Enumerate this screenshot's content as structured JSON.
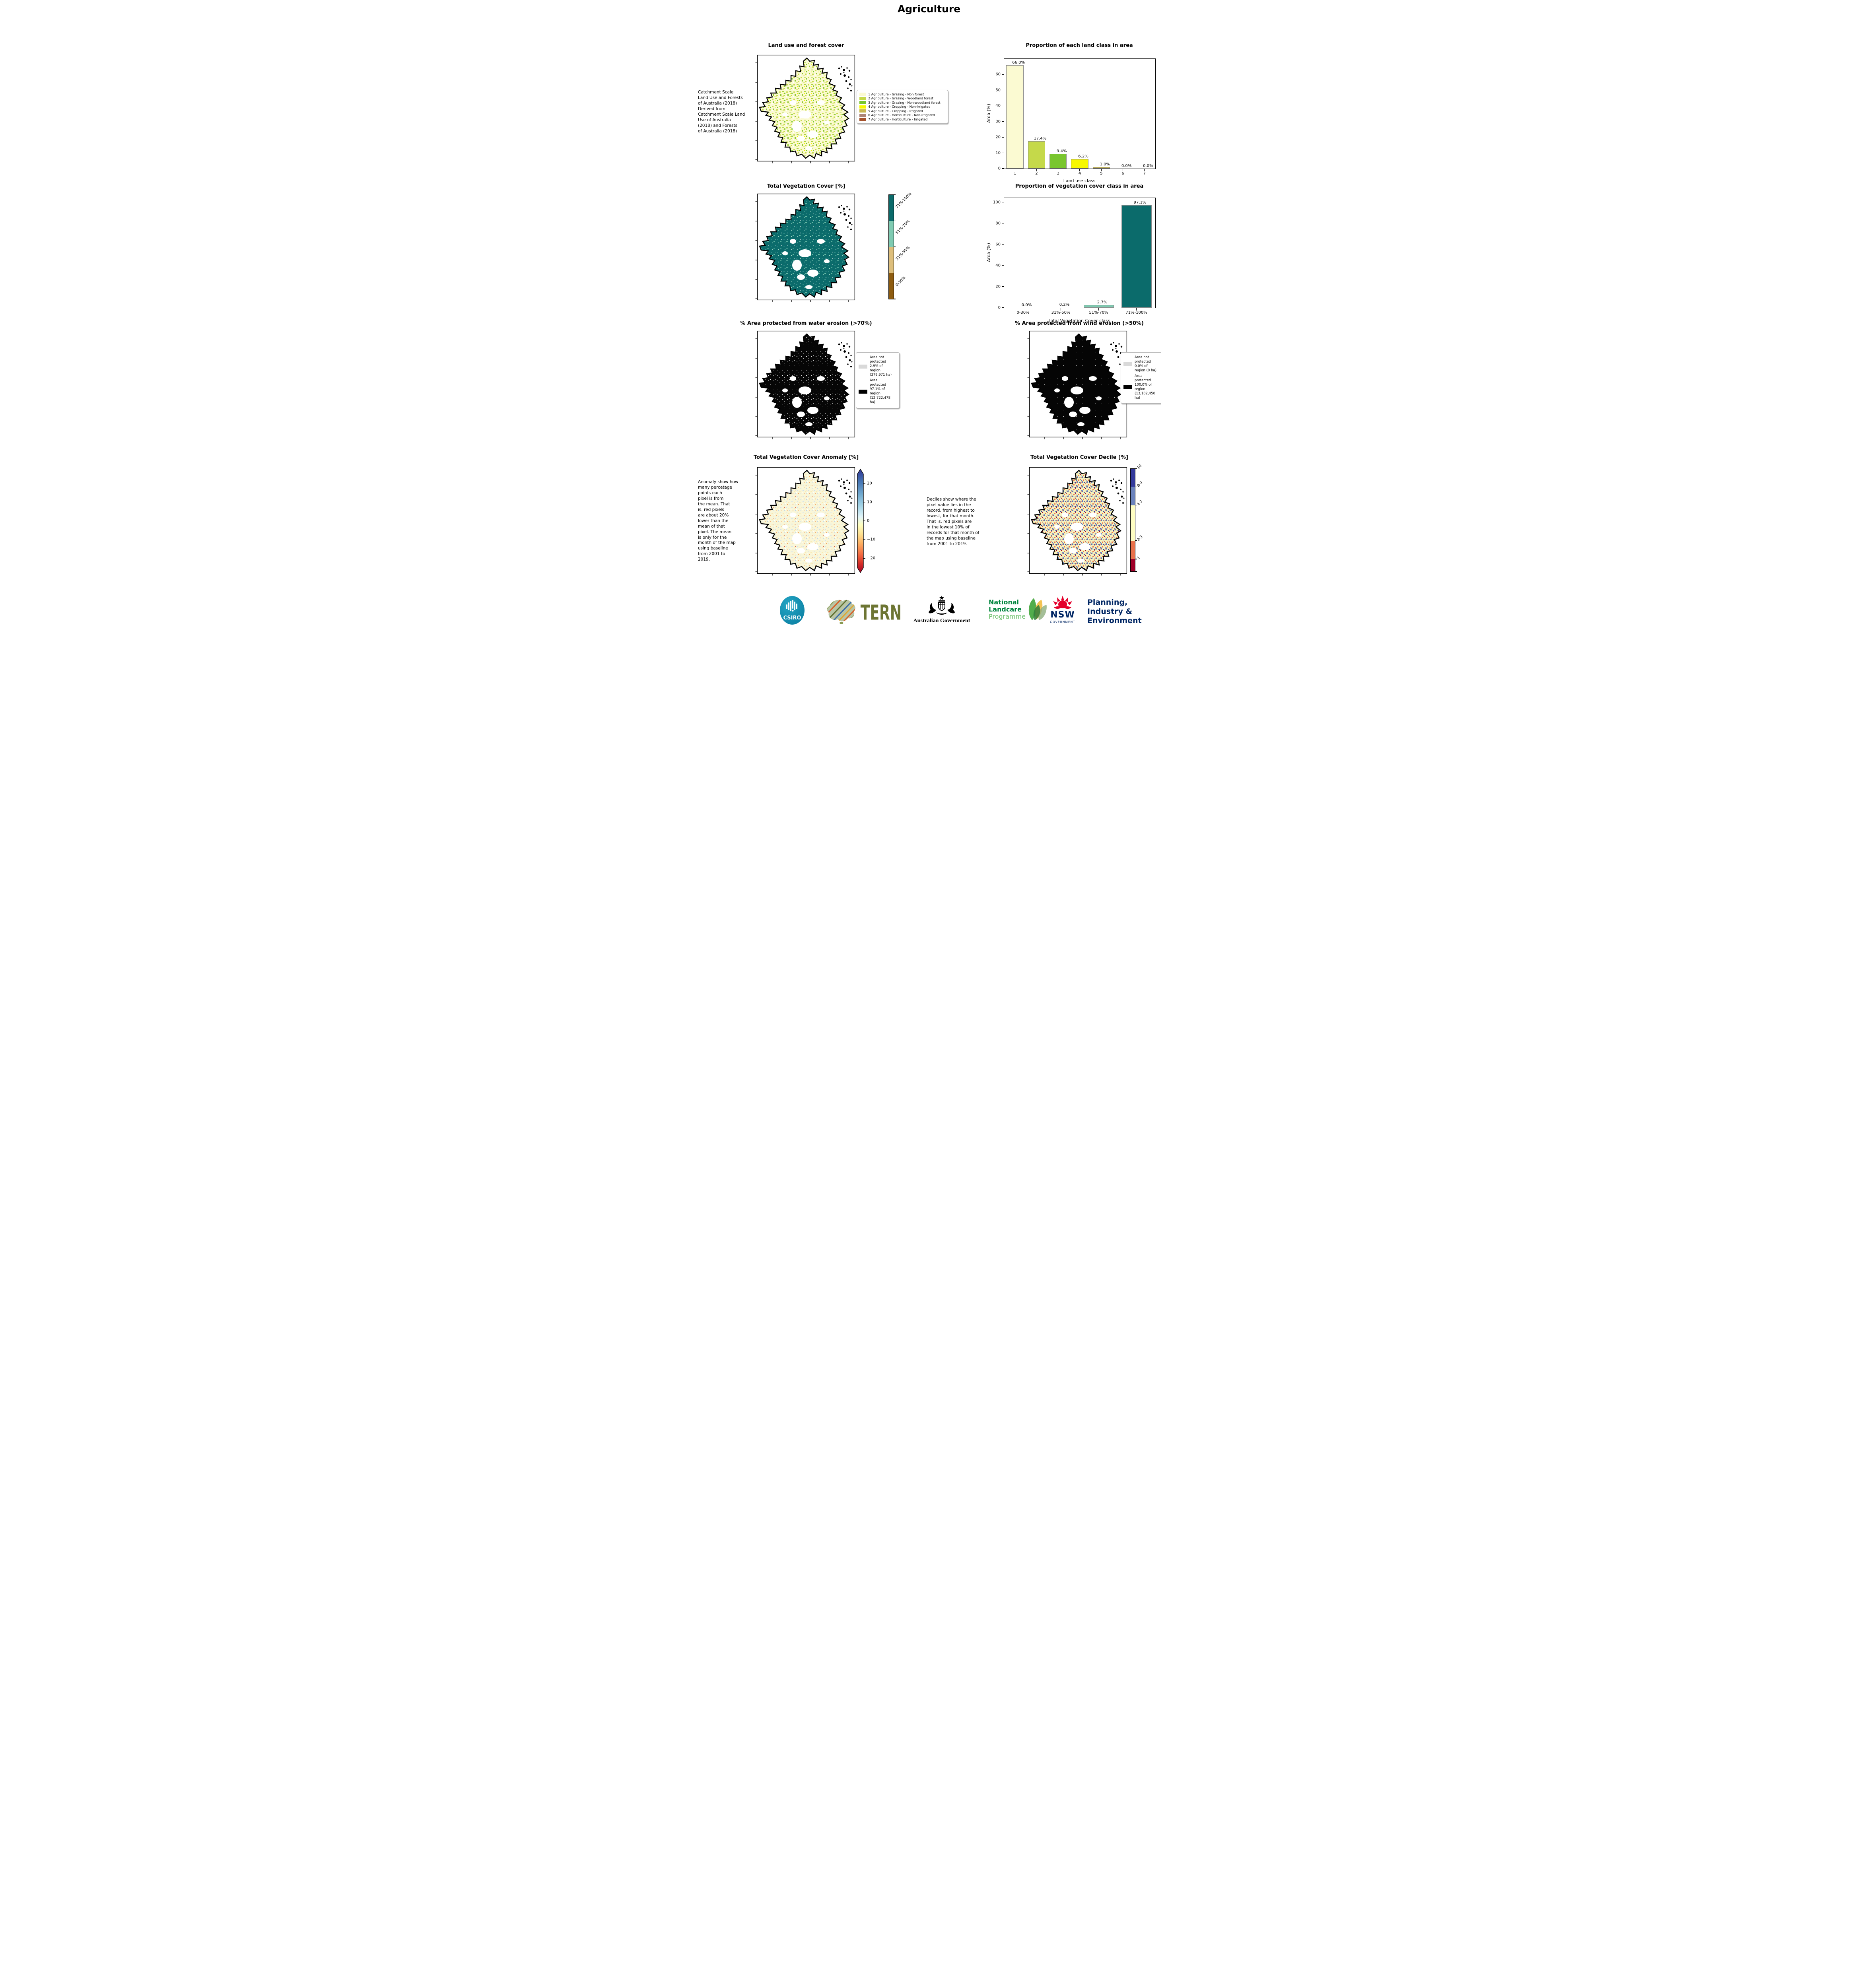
{
  "page": {
    "title": "Agriculture"
  },
  "panels": {
    "land_use": {
      "title": "Land use and forest cover",
      "side_note": "Catchment Scale\nLand Use and Forests\nof Australia (2018)\nDerived from\nCatchment Scale Land\nUse of Australia\n(2018) and Forests\nof Australia (2018)",
      "legend": [
        {
          "label": "1 Agriculture - Grazing - Non forest",
          "color": "#fbfad2"
        },
        {
          "label": "2 Agriculture - Grazing - Woodland forest",
          "color": "#c5d94a"
        },
        {
          "label": "3 Agriculture - Grazing - Non-woodland forest",
          "color": "#79c62e"
        },
        {
          "label": "4 Agriculture - Cropping - Non-irrigated",
          "color": "#f7f800"
        },
        {
          "label": "5 Agriculture - Cropping - Irrigated",
          "color": "#c9b851"
        },
        {
          "label": "6 Agriculture - Horticulture - Non-irrigated",
          "color": "#ac8476"
        },
        {
          "label": "7 Agriculture - Horticulture - Irrigated",
          "color": "#a5522c"
        }
      ]
    },
    "veg_cover": {
      "title": "Total Vegetation Cover [%]",
      "colorbar": [
        {
          "label": "71%-100%",
          "color": "#0b6b6b"
        },
        {
          "label": "51%-70%",
          "color": "#7fcbb2"
        },
        {
          "label": "31%-50%",
          "color": "#ddbe7b"
        },
        {
          "label": "0-30%",
          "color": "#8e5c10"
        }
      ]
    },
    "water_erosion": {
      "title": "% Area protected from water erosion (>70%)",
      "legend": [
        {
          "label": "Area not protected 2.9% of region (379,971 ha)",
          "color": "#d9d9d9"
        },
        {
          "label": "Area protected 97.1% of region (12,722,478 ha)",
          "color": "#000000"
        }
      ]
    },
    "wind_erosion": {
      "title": "% Area protected from wind erosion (>50%)",
      "legend": [
        {
          "label": "Area not protected 0.0% of region (0 ha)",
          "color": "#d9d9d9"
        },
        {
          "label": "Area protected 100.0% of region (13,102,450 ha)",
          "color": "#000000"
        }
      ]
    },
    "anomaly": {
      "title": "Total Vegetation Cover Anomaly [%]",
      "side_note": "Anomaly show how\nmany percetage\npoints each\npixel is from\nthe mean. That\nis, red pixels\nare about 20%\nlower than the\nmean of that\npixel. The mean\nis only for the\nmonth of the map\nusing baseline\nfrom 2001 to\n2019.",
      "colorbar_ticks": [
        "20",
        "10",
        "0",
        "−10",
        "−20"
      ]
    },
    "decile": {
      "title": "Total Vegetation Cover Decile [%]",
      "side_note": "Deciles show where the\npixel value lies in the\nrecord, from highest to\nlowest, for that month.\nThat is, red pixels are\nin the lowest 10% of\nrecords for that month of\nthe map using baseline\nfrom 2001 to 2019.",
      "colorbar": [
        {
          "label": "10",
          "color": "#333a9c"
        },
        {
          "label": "8-9",
          "color": "#6b83bd"
        },
        {
          "label": "4-7",
          "color": "#fdfdc2"
        },
        {
          "label": "2-3",
          "color": "#e8714b"
        },
        {
          "label": "1",
          "color": "#9f0028"
        }
      ],
      "colorbar_heights": [
        0.175,
        0.18,
        0.345,
        0.18,
        0.12
      ]
    }
  },
  "chart_data": [
    {
      "type": "bar",
      "title": "Proportion of each land class in area",
      "categories": [
        "1",
        "2",
        "3",
        "4",
        "5",
        "6",
        "7"
      ],
      "values": [
        66.0,
        17.4,
        9.4,
        6.2,
        1.0,
        0.0,
        0.0
      ],
      "bar_labels": [
        "66.0%",
        "17.4%",
        "9.4%",
        "6.2%",
        "1.0%",
        "0.0%",
        "0.0%"
      ],
      "colors": [
        "#fbfad2",
        "#c5d94a",
        "#79c62e",
        "#f7f800",
        "#c9b851",
        "#ac8476",
        "#a5522c"
      ],
      "xlabel": "Land use class",
      "ylabel": "Area (%)",
      "ylim": [
        0,
        70
      ],
      "yticks": [
        0,
        10,
        20,
        30,
        40,
        50,
        60
      ],
      "grid": false,
      "legend_position": "none"
    },
    {
      "type": "bar",
      "title": "Proportion of vegetation cover class in area",
      "categories": [
        "0-30%",
        "31%-50%",
        "51%-70%",
        "71%-100%"
      ],
      "values": [
        0.0,
        0.2,
        2.7,
        97.1
      ],
      "bar_labels": [
        "0.0%",
        "0.2%",
        "2.7%",
        "97.1%"
      ],
      "colors": [
        "#8e5c10",
        "#ddbe7b",
        "#7fcbb2",
        "#0b6b6b"
      ],
      "xlabel": "Total Vegetation Cover class",
      "ylabel": "Area (%)",
      "ylim": [
        0,
        104
      ],
      "yticks": [
        0,
        20,
        40,
        60,
        80,
        100
      ],
      "grid": false,
      "legend_position": "none"
    }
  ],
  "footer": {
    "csiro_label": "CSIRO",
    "tern_label": "TERN",
    "aus_gov_label": "Australian Government",
    "landcare_lines": [
      "National",
      "Landcare",
      "Programme"
    ],
    "nsw_label": "NSW",
    "nsw_sub": "GOVERNMENT",
    "planning_lines": [
      "Planning,",
      "Industry &",
      "Environment"
    ]
  },
  "colors": {
    "csiro_teal": "#1492b4",
    "tern_olive": "#6d7533",
    "landcare_green": "#00843d",
    "landcare_light_green": "#6abf69",
    "nsw_red": "#e4002b",
    "navy": "#002664"
  }
}
